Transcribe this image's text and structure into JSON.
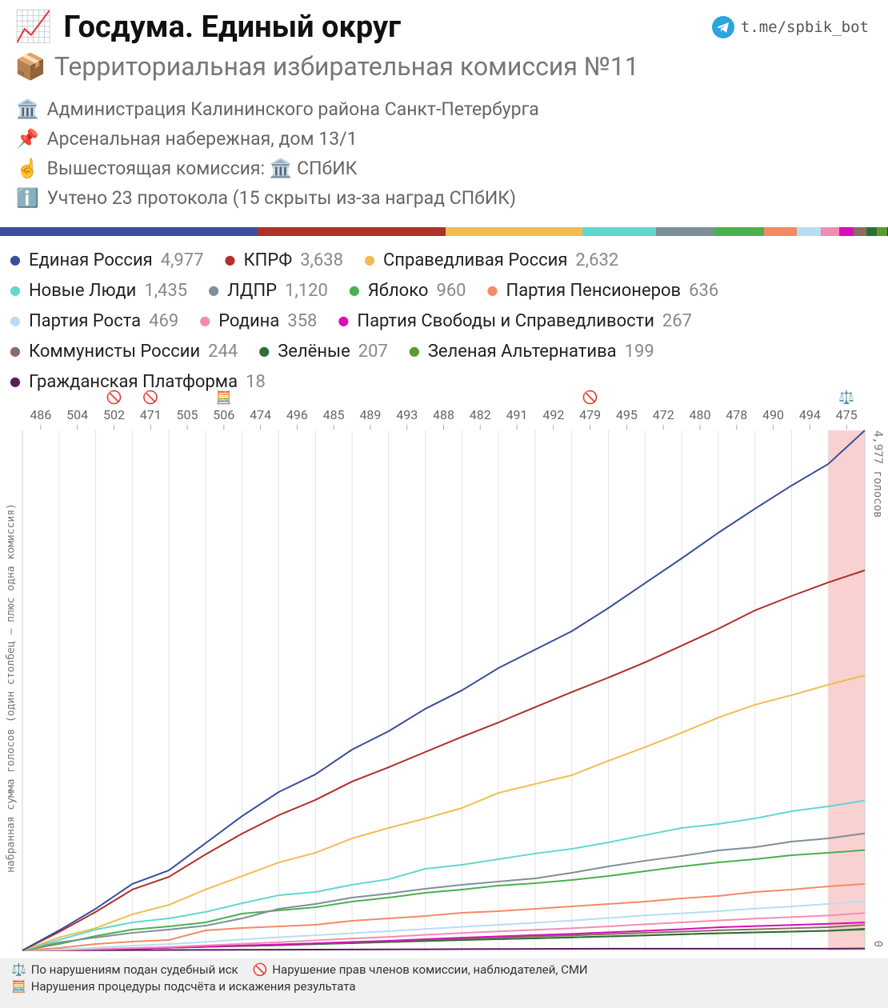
{
  "header": {
    "title_icon": "📈",
    "title": "Госдума. Единый округ",
    "link": "t.me/spbik_bot",
    "subtitle_icon": "📦",
    "subtitle": "Территориальная избирательная комиссия №11",
    "info": [
      {
        "icon": "🏛️",
        "text": "Администрация Калининского района Санкт-Петербурга"
      },
      {
        "icon": "📌",
        "text": "Арсенальная набережная, дом 13/1"
      },
      {
        "icon": "☝️",
        "text": "Вышестоящая комиссия: 🏛️ СПбИК"
      },
      {
        "icon": "ℹ️",
        "text": "Учтено 23 протокола (15 скрыты из-за наград СПбИК)"
      }
    ]
  },
  "chart_data": {
    "type": "cumulative-line",
    "ylabel": "набранная сумма голосов (один столбец – плюс одна комиссия)",
    "categories": [
      "486",
      "504",
      "502",
      "471",
      "505",
      "506",
      "474",
      "496",
      "485",
      "489",
      "493",
      "488",
      "482",
      "491",
      "492",
      "479",
      "495",
      "472",
      "480",
      "478",
      "490",
      "494",
      "475"
    ],
    "markers": [
      null,
      null,
      "🚫",
      "🚫",
      null,
      "🧮",
      null,
      null,
      null,
      null,
      null,
      null,
      null,
      null,
      null,
      "🚫",
      null,
      null,
      null,
      null,
      null,
      null,
      "⚖️"
    ],
    "ylim": [
      0,
      4977
    ],
    "yticks": [
      0,
      {
        "value": 4977,
        "label": "4,977 голосов"
      }
    ],
    "series": [
      {
        "name": "Единая Россия",
        "color": "#3a4f9a",
        "total": 4977,
        "total_label": "4,977",
        "values": [
          191,
          207,
          238,
          130,
          260,
          260,
          230,
          169,
          237,
          176,
          214,
          177,
          214,
          176,
          176,
          222,
          238,
          237,
          245,
          230,
          222,
          206,
          322
        ]
      },
      {
        "name": "КПРФ",
        "color": "#b0302a",
        "total": 3638,
        "total_label": "3,638",
        "values": [
          176,
          192,
          214,
          122,
          215,
          199,
          176,
          146,
          176,
          137,
          146,
          145,
          138,
          146,
          145,
          138,
          146,
          160,
          161,
          176,
          138,
          130,
          116
        ]
      },
      {
        "name": "Справедливая Россия",
        "color": "#f0bd50",
        "total": 2632,
        "total_label": "2,632",
        "values": [
          123,
          91,
          131,
          91,
          146,
          130,
          130,
          92,
          138,
          100,
          91,
          100,
          145,
          85,
          84,
          138,
          130,
          138,
          145,
          123,
          92,
          99,
          90
        ]
      },
      {
        "name": "Новые Люди",
        "color": "#5fd8d0",
        "total": 1435,
        "total_label": "1,435",
        "values": [
          100,
          99,
          69,
          38,
          62,
          84,
          76,
          31,
          69,
          53,
          100,
          38,
          54,
          54,
          45,
          62,
          69,
          69,
          38,
          53,
          69,
          46,
          57
        ]
      },
      {
        "name": "ЛДПР",
        "color": "#7d8f99",
        "total": 1120,
        "total_label": "1,120",
        "values": [
          77,
          46,
          45,
          31,
          38,
          69,
          92,
          46,
          61,
          39,
          46,
          38,
          31,
          30,
          54,
          61,
          54,
          46,
          53,
          31,
          53,
          31,
          48
        ]
      },
      {
        "name": "Яблоко",
        "color": "#4caf50",
        "total": 960,
        "values": [
          61,
          77,
          61,
          31,
          38,
          84,
          31,
          30,
          54,
          38,
          46,
          31,
          38,
          23,
          31,
          38,
          46,
          46,
          38,
          31,
          38,
          23,
          26
        ]
      },
      {
        "name": "Партия Пенсионеров",
        "color": "#f38a66",
        "total": 636,
        "values": [
          23,
          38,
          23,
          16,
          91,
          23,
          16,
          15,
          38,
          23,
          23,
          31,
          15,
          23,
          23,
          23,
          23,
          31,
          23,
          38,
          23,
          31,
          23
        ]
      },
      {
        "name": "Партия Роста",
        "color": "#b8dcf5",
        "total": 469,
        "values": [
          10,
          15,
          20,
          15,
          20,
          25,
          20,
          20,
          20,
          20,
          20,
          20,
          20,
          20,
          20,
          25,
          25,
          20,
          20,
          25,
          20,
          25,
          24
        ]
      },
      {
        "name": "Родина",
        "color": "#f58bb4",
        "total": 358,
        "values": [
          5,
          8,
          10,
          10,
          15,
          15,
          15,
          18,
          18,
          15,
          20,
          18,
          15,
          15,
          15,
          18,
          20,
          18,
          18,
          18,
          15,
          15,
          24
        ]
      },
      {
        "name": "Партия Свободы и Справедливости",
        "color": "#d60fb8",
        "total": 267,
        "values": [
          5,
          5,
          8,
          8,
          10,
          10,
          10,
          12,
          12,
          12,
          15,
          15,
          12,
          12,
          12,
          15,
          15,
          15,
          18,
          12,
          10,
          12,
          12
        ]
      },
      {
        "name": "Коммунисты России",
        "color": "#8a6d62",
        "total": 244,
        "values": [
          5,
          5,
          8,
          8,
          10,
          10,
          10,
          10,
          12,
          12,
          12,
          12,
          10,
          10,
          10,
          12,
          12,
          12,
          12,
          10,
          10,
          10,
          22
        ]
      },
      {
        "name": "Зелёные",
        "color": "#2e6e36",
        "total": 207,
        "values": [
          5,
          5,
          8,
          8,
          8,
          8,
          8,
          10,
          10,
          10,
          10,
          10,
          8,
          8,
          8,
          10,
          10,
          10,
          10,
          8,
          8,
          8,
          19
        ]
      },
      {
        "name": "Зеленая Альтернатива",
        "color": "#5a9a2e",
        "total": 199,
        "values": [
          5,
          5,
          8,
          8,
          8,
          8,
          8,
          10,
          10,
          10,
          10,
          10,
          8,
          8,
          8,
          10,
          10,
          10,
          10,
          8,
          8,
          8,
          11
        ]
      },
      {
        "name": "Гражданская Платформа",
        "color": "#5a1f5a",
        "total": 18,
        "values": [
          1,
          1,
          1,
          1,
          1,
          1,
          1,
          1,
          1,
          1,
          1,
          1,
          1,
          1,
          1,
          1,
          0,
          0,
          0,
          0,
          0,
          0,
          2
        ]
      }
    ]
  },
  "footnotes": [
    {
      "icon": "⚖️",
      "text": "По нарушениям подан судебный иск"
    },
    {
      "icon": "🚫",
      "text": "Нарушение прав членов комиссии, наблюдателей, СМИ"
    },
    {
      "icon": "🧮",
      "text": "Нарушения процедуры подсчёта и искажения результата"
    }
  ]
}
